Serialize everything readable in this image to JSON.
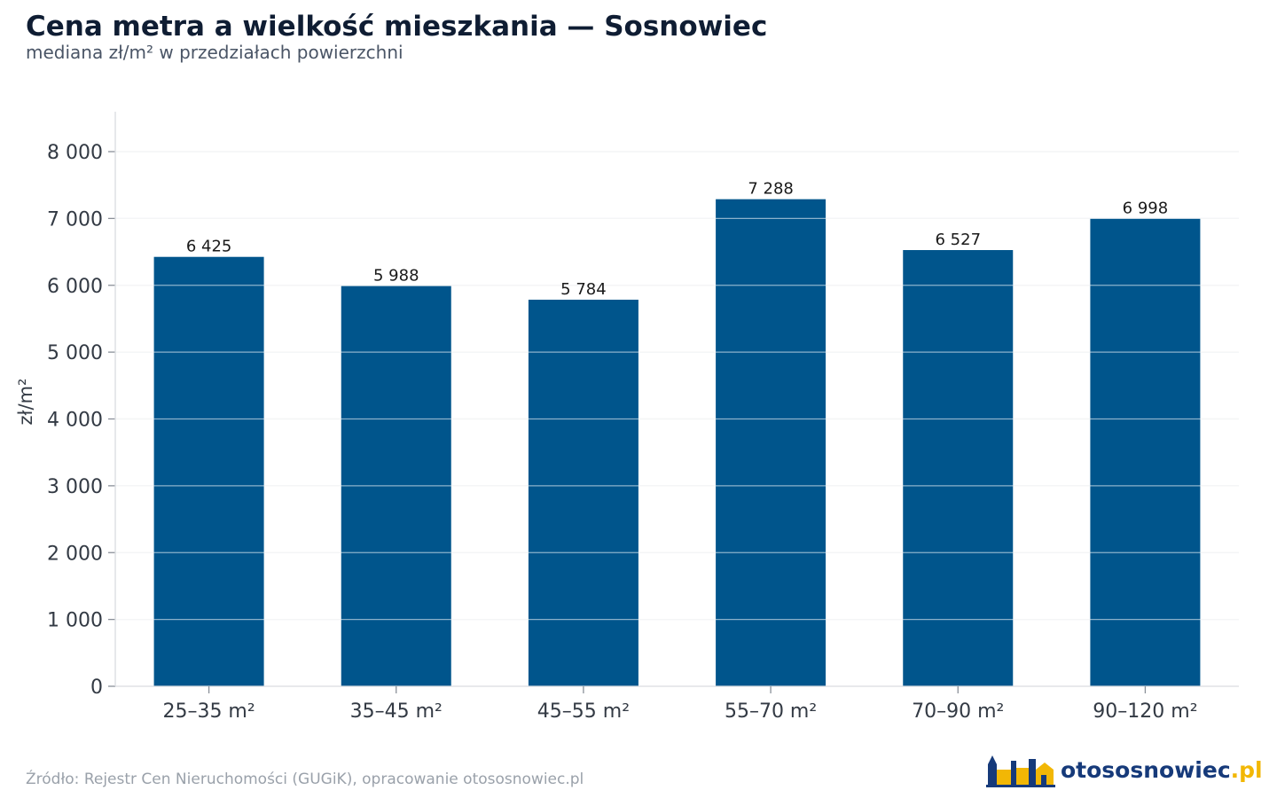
{
  "header": {
    "title": "Cena metra a wielkość mieszkania — Sosnowiec",
    "subtitle": "mediana zł/m² w przedziałach powierzchni"
  },
  "footer": {
    "source": "Źródło: Rejestr Cen Nieruchomości (GUGiK), opracowanie otososnowiec.pl",
    "brand_name": "otososnowiec",
    "brand_tld": ".pl"
  },
  "colors": {
    "bar": "#00558c",
    "grid": "#e6e8eb",
    "brand_dark": "#163a7a",
    "brand_accent": "#f2b705"
  },
  "chart_data": {
    "type": "bar",
    "title": "Cena metra a wielkość mieszkania — Sosnowiec",
    "subtitle": "mediana zł/m² w przedziałach powierzchni",
    "xlabel": "",
    "ylabel": "zł/m²",
    "categories": [
      "25–35 m²",
      "35–45 m²",
      "45–55 m²",
      "55–70 m²",
      "70–90 m²",
      "90–120 m²"
    ],
    "values": [
      6425,
      5988,
      5784,
      7288,
      6527,
      6998
    ],
    "data_labels": [
      "6 425",
      "5 988",
      "5 784",
      "7 288",
      "6 527",
      "6 998"
    ],
    "ylim": [
      0,
      8600
    ],
    "yticks": [
      0,
      1000,
      2000,
      3000,
      4000,
      5000,
      6000,
      7000,
      8000
    ],
    "ytick_labels": [
      "0",
      "1 000",
      "2 000",
      "3 000",
      "4 000",
      "5 000",
      "6 000",
      "7 000",
      "8 000"
    ],
    "grid": true,
    "legend": "none"
  }
}
